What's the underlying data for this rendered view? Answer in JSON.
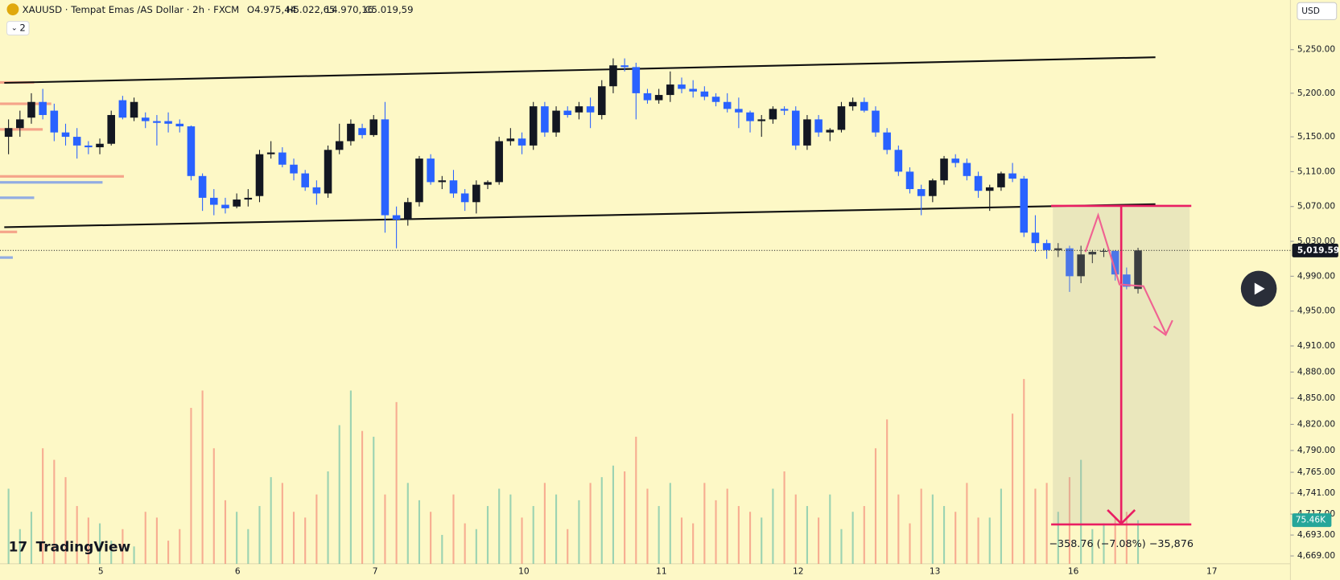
{
  "header": {
    "symbol": "XAUUSD · Tempat Emas /AS Dollar · 2h · FXCM",
    "ohlc": [
      "O4.975,44",
      "H5.022,65",
      "L4.970,16",
      "C5.019,59"
    ],
    "indicators": "2"
  },
  "currency": "USD",
  "logo": "TradingView",
  "measure": "−358.76 (−7.08%) −35,876",
  "chart_data": {
    "type": "candlestick",
    "ylim": [
      4660,
      5307
    ],
    "yticks": [
      {
        "value": 5250,
        "label": "5,250.00"
      },
      {
        "value": 5200,
        "label": "5,200.00"
      },
      {
        "value": 5150,
        "label": "5,150.00"
      },
      {
        "value": 5110,
        "label": "5,110.00"
      },
      {
        "value": 5070,
        "label": "5,070.00"
      },
      {
        "value": 5030,
        "label": "5,030.00"
      },
      {
        "value": 4990,
        "label": "4,990.00"
      },
      {
        "value": 4950,
        "label": "4,950.00"
      },
      {
        "value": 4910,
        "label": "4,910.00"
      },
      {
        "value": 4880,
        "label": "4,880.00"
      },
      {
        "value": 4850,
        "label": "4,850.00"
      },
      {
        "value": 4820,
        "label": "4,820.00"
      },
      {
        "value": 4790,
        "label": "4,790.00"
      },
      {
        "value": 4765,
        "label": "4,765.00"
      },
      {
        "value": 4741,
        "label": "4,741.00"
      },
      {
        "value": 4717,
        "label": "4,717.00"
      },
      {
        "value": 4693,
        "label": "4,693.00"
      },
      {
        "value": 4669,
        "label": "4,669.00"
      }
    ],
    "x_labels": [
      "5",
      "6",
      "7",
      "10",
      "11",
      "12",
      "13",
      "16",
      "17"
    ],
    "up_color": "#131722",
    "down_color": "#2962ff",
    "volume_up_color": "rgba(38,166,154,0.45)",
    "volume_down_color": "rgba(239,83,80,0.45)",
    "candles": [
      [
        5150,
        5170,
        5130,
        5160
      ],
      [
        5160,
        5180,
        5150,
        5170
      ],
      [
        5172,
        5200,
        5165,
        5190
      ],
      [
        5190,
        5205,
        5170,
        5175
      ],
      [
        5180,
        5188,
        5145,
        5155
      ],
      [
        5155,
        5165,
        5140,
        5150
      ],
      [
        5150,
        5160,
        5125,
        5140
      ],
      [
        5140,
        5145,
        5130,
        5138
      ],
      [
        5138,
        5148,
        5130,
        5142
      ],
      [
        5142,
        5180,
        5140,
        5175
      ],
      [
        5192,
        5197,
        5170,
        5172
      ],
      [
        5172,
        5195,
        5168,
        5190
      ],
      [
        5172,
        5178,
        5160,
        5168
      ],
      [
        5168,
        5175,
        5140,
        5166
      ],
      [
        5168,
        5178,
        5155,
        5165
      ],
      [
        5165,
        5170,
        5155,
        5162
      ],
      [
        5162,
        5163,
        5100,
        5105
      ],
      [
        5105,
        5108,
        5065,
        5080
      ],
      [
        5080,
        5090,
        5060,
        5072
      ],
      [
        5072,
        5080,
        5062,
        5068
      ],
      [
        5070,
        5085,
        5068,
        5078
      ],
      [
        5078,
        5090,
        5070,
        5080
      ],
      [
        5082,
        5135,
        5075,
        5130
      ],
      [
        5130,
        5145,
        5125,
        5132
      ],
      [
        5132,
        5138,
        5115,
        5118
      ],
      [
        5118,
        5125,
        5100,
        5108
      ],
      [
        5108,
        5112,
        5088,
        5092
      ],
      [
        5092,
        5100,
        5072,
        5085
      ],
      [
        5085,
        5140,
        5080,
        5135
      ],
      [
        5135,
        5165,
        5130,
        5145
      ],
      [
        5145,
        5170,
        5140,
        5165
      ],
      [
        5160,
        5165,
        5148,
        5152
      ],
      [
        5152,
        5175,
        5150,
        5170
      ],
      [
        5170,
        5190,
        5040,
        5060
      ],
      [
        5060,
        5070,
        5022,
        5055
      ],
      [
        5055,
        5080,
        5048,
        5075
      ],
      [
        5075,
        5128,
        5070,
        5125
      ],
      [
        5125,
        5130,
        5095,
        5098
      ],
      [
        5098,
        5105,
        5090,
        5100
      ],
      [
        5100,
        5112,
        5080,
        5085
      ],
      [
        5085,
        5090,
        5065,
        5075
      ],
      [
        5075,
        5100,
        5062,
        5095
      ],
      [
        5095,
        5100,
        5090,
        5098
      ],
      [
        5098,
        5150,
        5095,
        5145
      ],
      [
        5145,
        5160,
        5140,
        5148
      ],
      [
        5148,
        5155,
        5130,
        5140
      ],
      [
        5140,
        5190,
        5135,
        5185
      ],
      [
        5185,
        5190,
        5150,
        5155
      ],
      [
        5155,
        5185,
        5150,
        5180
      ],
      [
        5180,
        5185,
        5172,
        5175
      ],
      [
        5178,
        5190,
        5170,
        5185
      ],
      [
        5185,
        5195,
        5160,
        5178
      ],
      [
        5175,
        5215,
        5170,
        5208
      ],
      [
        5208,
        5240,
        5200,
        5232
      ],
      [
        5232,
        5240,
        5225,
        5230
      ],
      [
        5230,
        5235,
        5170,
        5200
      ],
      [
        5200,
        5205,
        5188,
        5192
      ],
      [
        5192,
        5205,
        5188,
        5198
      ],
      [
        5198,
        5225,
        5190,
        5210
      ],
      [
        5210,
        5218,
        5200,
        5205
      ],
      [
        5205,
        5215,
        5195,
        5202
      ],
      [
        5202,
        5208,
        5192,
        5196
      ],
      [
        5196,
        5200,
        5185,
        5190
      ],
      [
        5190,
        5200,
        5178,
        5182
      ],
      [
        5182,
        5195,
        5160,
        5178
      ],
      [
        5178,
        5180,
        5155,
        5168
      ],
      [
        5168,
        5175,
        5150,
        5170
      ],
      [
        5170,
        5185,
        5165,
        5182
      ],
      [
        5182,
        5185,
        5175,
        5180
      ],
      [
        5180,
        5185,
        5135,
        5140
      ],
      [
        5140,
        5175,
        5135,
        5170
      ],
      [
        5170,
        5175,
        5150,
        5155
      ],
      [
        5155,
        5160,
        5145,
        5158
      ],
      [
        5158,
        5190,
        5155,
        5185
      ],
      [
        5185,
        5195,
        5180,
        5190
      ],
      [
        5190,
        5195,
        5178,
        5180
      ],
      [
        5180,
        5185,
        5150,
        5155
      ],
      [
        5155,
        5160,
        5130,
        5135
      ],
      [
        5135,
        5140,
        5105,
        5110
      ],
      [
        5110,
        5115,
        5085,
        5090
      ],
      [
        5090,
        5095,
        5060,
        5082
      ],
      [
        5082,
        5102,
        5075,
        5100
      ],
      [
        5100,
        5128,
        5095,
        5125
      ],
      [
        5125,
        5130,
        5115,
        5120
      ],
      [
        5120,
        5125,
        5100,
        5105
      ],
      [
        5105,
        5110,
        5080,
        5088
      ],
      [
        5088,
        5095,
        5065,
        5092
      ],
      [
        5092,
        5110,
        5088,
        5108
      ],
      [
        5108,
        5120,
        5098,
        5102
      ],
      [
        5102,
        5105,
        5035,
        5040
      ],
      [
        5040,
        5060,
        5018,
        5028
      ],
      [
        5028,
        5032,
        5010,
        5020
      ],
      [
        5020,
        5028,
        5012,
        5022
      ],
      [
        5022,
        5025,
        4972,
        4990
      ],
      [
        4990,
        5025,
        4982,
        5015
      ],
      [
        5015,
        5020,
        5005,
        5018
      ],
      [
        5018,
        5022,
        5012,
        5019
      ],
      [
        5019,
        5020,
        4985,
        4992
      ],
      [
        4992,
        5000,
        4975,
        4978
      ],
      [
        4975.44,
        5022.65,
        4970.16,
        5019.59
      ]
    ],
    "volumes": [
      130,
      60,
      90,
      200,
      180,
      150,
      100,
      80,
      70,
      40,
      60,
      30,
      90,
      80,
      40,
      60,
      270,
      300,
      200,
      110,
      90,
      60,
      100,
      150,
      140,
      90,
      80,
      120,
      160,
      240,
      300,
      230,
      220,
      120,
      280,
      140,
      110,
      90,
      50,
      120,
      70,
      60,
      100,
      130,
      120,
      80,
      100,
      140,
      120,
      60,
      110,
      140,
      150,
      170,
      160,
      220,
      130,
      100,
      140,
      80,
      70,
      140,
      110,
      130,
      100,
      90,
      80,
      130,
      160,
      120,
      100,
      80,
      120,
      60,
      90,
      100,
      200,
      250,
      120,
      70,
      130,
      120,
      100,
      90,
      140,
      80,
      80,
      130,
      260,
      320,
      130,
      140,
      90,
      150,
      180,
      60,
      70,
      80,
      90,
      75.46
    ],
    "last_price": {
      "value": 5019.59,
      "label": "5,019.59"
    },
    "last_volume": {
      "value": 75.46,
      "label": "75.46K"
    }
  }
}
